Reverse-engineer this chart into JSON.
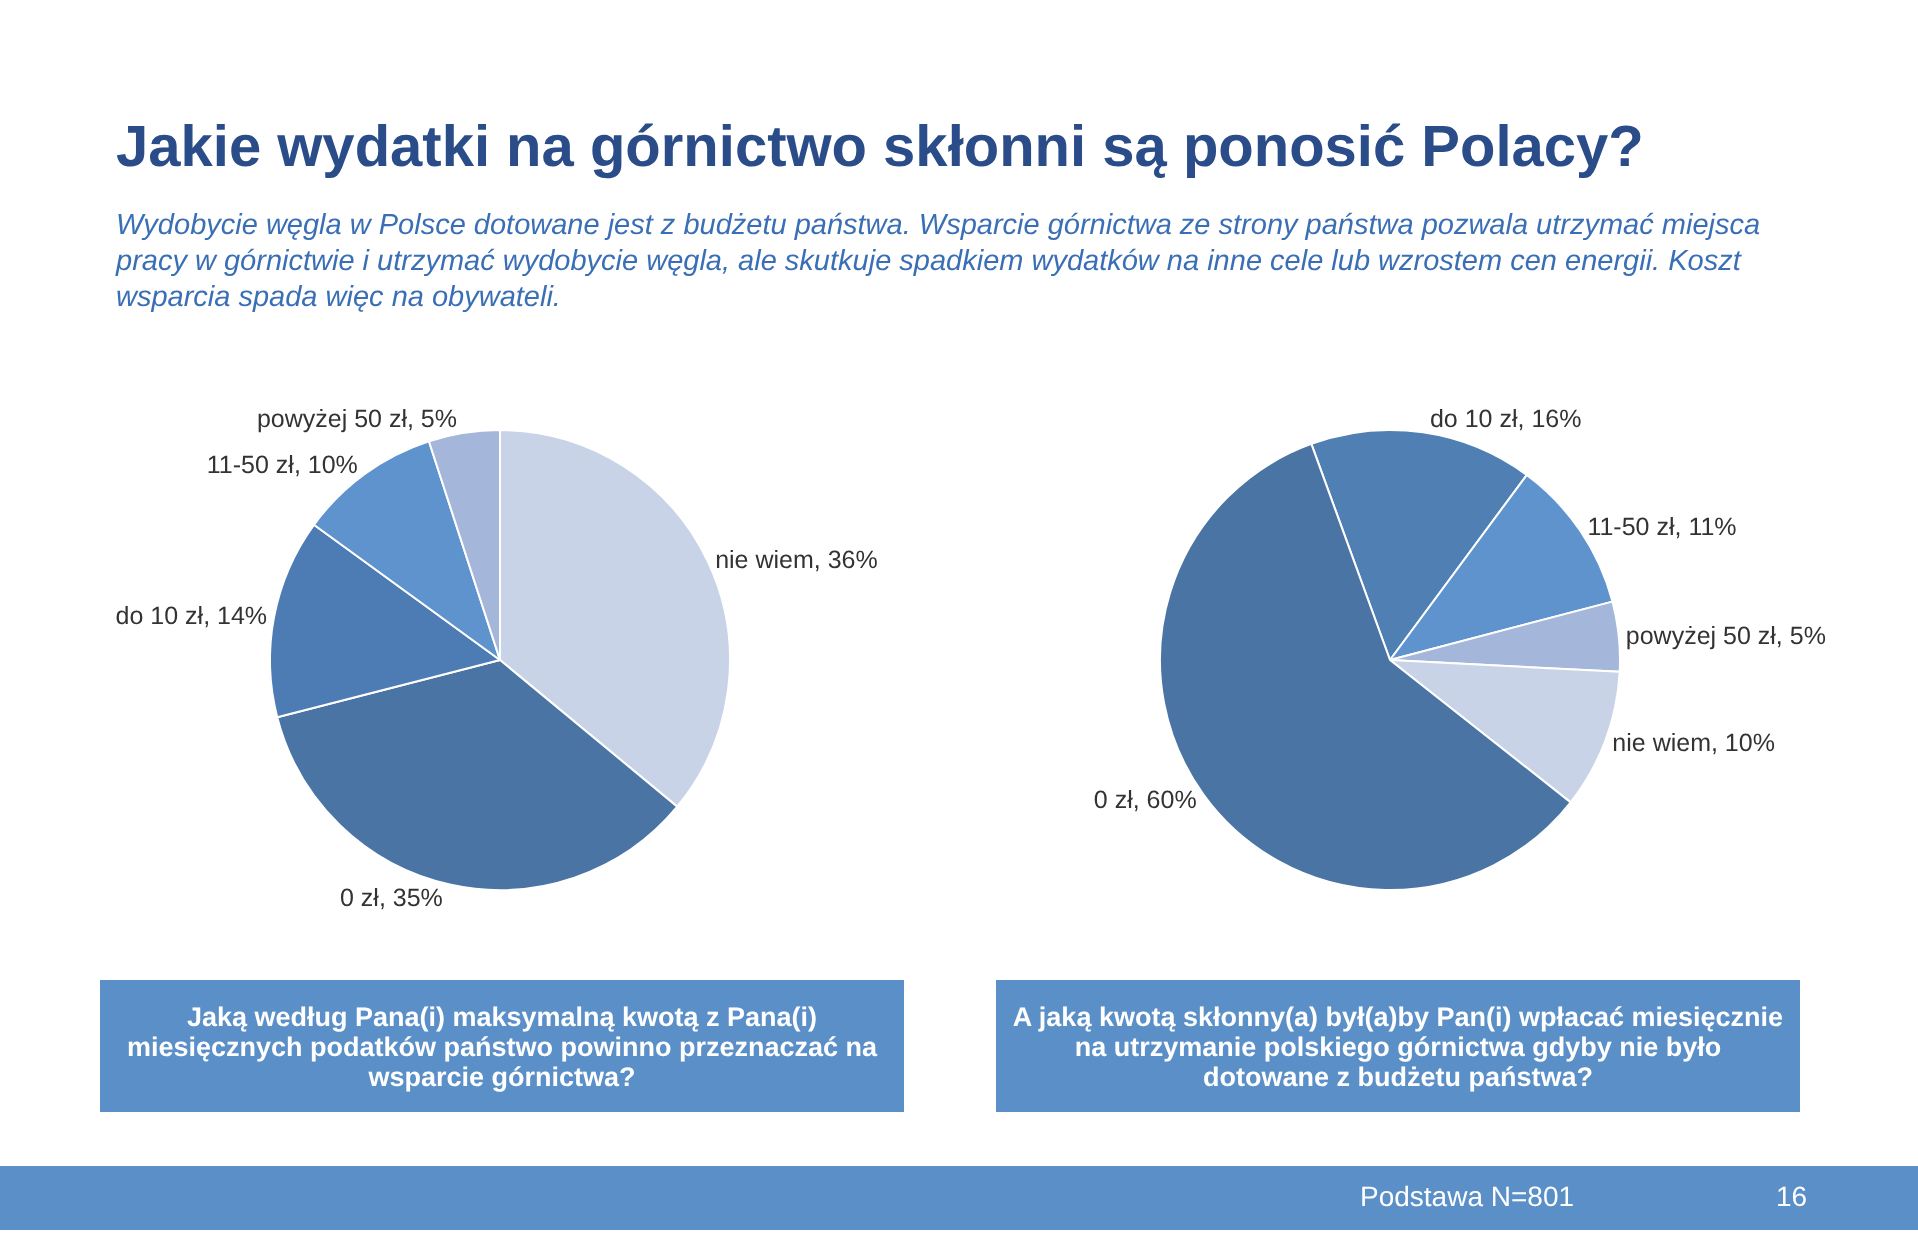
{
  "chart_data": [
    {
      "type": "pie",
      "title": "Jakie wydatki na górnictwo skłonni są ponosić Polacy?",
      "subtitle": "Wydobycie węgla w Polsce dotowane jest z budżetu państwa. Wsparcie górnictwa ze strony państwa pozwala utrzymać miejsca pracy w górnictwie i utrzymać wydobycie węgla, ale skutkuje spadkiem wydatków na inne cele lub wzrostem cen energii. Koszt wsparcia spada więc na obywateli.",
      "categories": [
        "nie wiem",
        "0 zł",
        "do 10 zł",
        "11-50 zł",
        "powyżej 50 zł"
      ],
      "values": [
        36,
        35,
        14,
        10,
        5
      ],
      "colors": [
        "#c8d3e7",
        "#4a74a3",
        "#4c7cb3",
        "#5e93cd",
        "#a4b6d9"
      ],
      "value_labels": [
        "36%",
        "35%",
        "14%",
        "10%",
        "5%"
      ],
      "annotations": [
        "Jaką według Pana(i) maksymalną kwotą z Pana(i) miesięcznych podatków państwo powinno przeznaczać na wsparcie górnictwa?"
      ]
    },
    {
      "type": "pie",
      "categories": [
        "do 10 zł",
        "11-50 zł",
        "powyżej 50 zł",
        "nie wiem",
        "0 zł"
      ],
      "values": [
        16,
        11,
        5,
        10,
        60
      ],
      "colors": [
        "#507fb4",
        "#5f93cd",
        "#a4b6d9",
        "#c8d3e7",
        "#4a74a3"
      ],
      "value_labels": [
        "16%",
        "11%",
        "5%",
        "10%",
        "60%"
      ],
      "annotations": [
        "A jaką kwotą skłonny(a) był(a)by Pan(i) wpłacać miesięcznie na utrzymanie polskiego górnictwa gdyby nie było dotowane z budżetu państwa?",
        "Podstawa N=801",
        "16"
      ]
    }
  ]
}
